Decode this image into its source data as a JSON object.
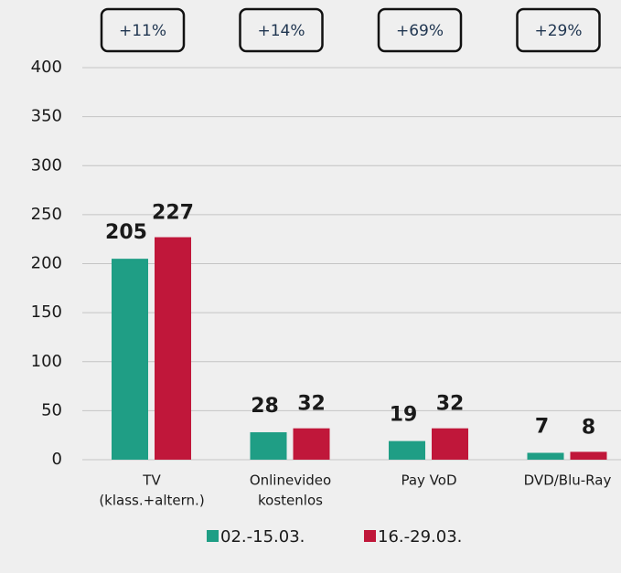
{
  "chart_data": {
    "type": "bar",
    "categories": [
      [
        "TV",
        "(klass.+altern.)"
      ],
      [
        "Onlinevideo",
        "kostenlos"
      ],
      [
        "Pay VoD"
      ],
      [
        "DVD/Blu-Ray"
      ]
    ],
    "series": [
      {
        "name": "02.-15.03.",
        "color": "#1f9e85",
        "values": [
          205,
          28,
          19,
          7
        ]
      },
      {
        "name": "16.-29.03.",
        "color": "#c0173a",
        "values": [
          227,
          32,
          32,
          8
        ]
      }
    ],
    "annotations": [
      "+11%",
      "+14%",
      "+69%",
      "+29%"
    ],
    "ylim": [
      0,
      400
    ],
    "yticks": [
      0,
      50,
      100,
      150,
      200,
      250,
      300,
      350,
      400
    ],
    "grid": true
  }
}
